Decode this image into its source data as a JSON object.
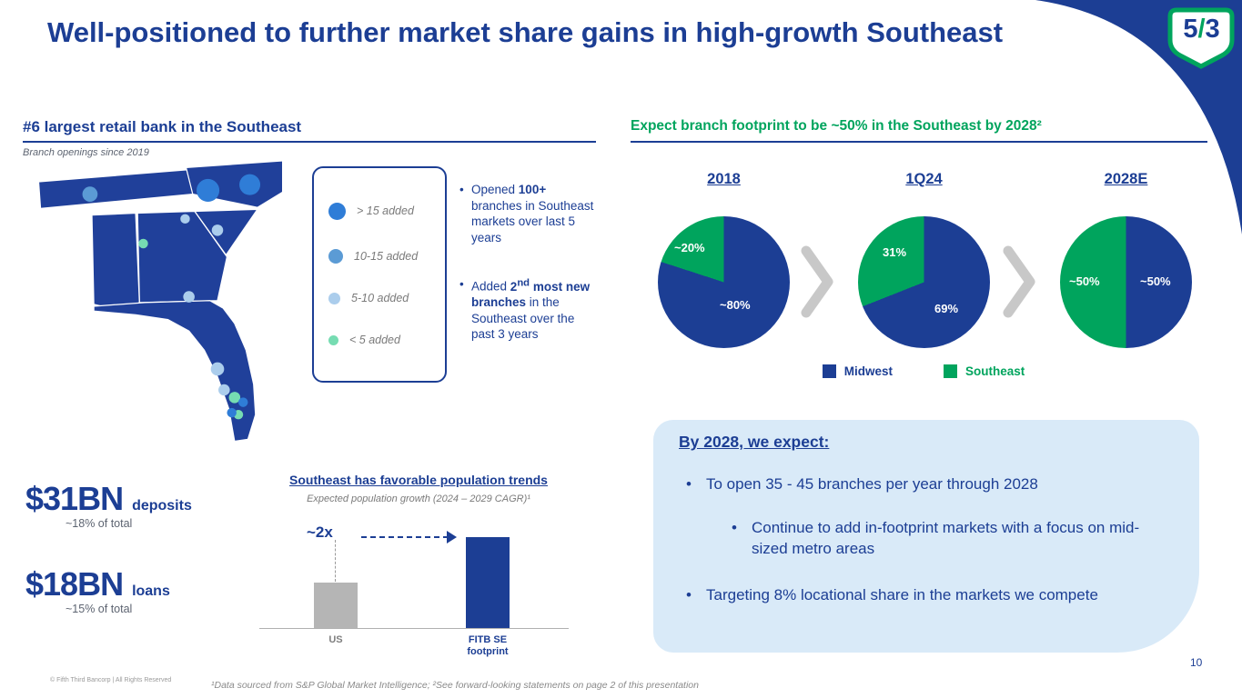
{
  "slide": {
    "title": "Well-positioned to further market share gains in high-growth Southeast",
    "page_number": "10",
    "logo": {
      "five": "5",
      "slash": "/",
      "three": "3"
    }
  },
  "colors": {
    "navy": "#1c3e94",
    "green": "#00a45d",
    "map": "#20409a",
    "dotLarge": "#2f7dd7",
    "dotMedium": "#5b9bd5",
    "dotLight": "#abcdec",
    "dotGreen": "#76dcb2",
    "panel": "#d9eaf8",
    "chevron": "#c8c8c8",
    "barGray": "#b5b5b5",
    "grayText": "#7a7a7a"
  },
  "left_section": {
    "header": "#6 largest retail bank in the Southeast",
    "subheader": "Branch openings since 2019",
    "map_legend": [
      {
        "label": "> 15 added"
      },
      {
        "label": "10-15 added"
      },
      {
        "label": "5-10 added"
      },
      {
        "label": "< 5 added"
      }
    ],
    "bullets": [
      {
        "pre": "Opened ",
        "bold": "100+",
        "post": " branches in Southeast markets over last 5 years"
      },
      {
        "pre": "Added ",
        "bold_num": "2",
        "sup": "nd",
        "bold_rest": " most new branches",
        "post": " in the Southeast over the past 3 years"
      }
    ]
  },
  "stats": [
    {
      "value": "$31BN",
      "label": "deposits",
      "note": "~18% of total"
    },
    {
      "value": "$18BN",
      "label": "loans",
      "note": "~15% of total"
    }
  ],
  "right_section": {
    "expect_box": {
      "title": "By 2028, we expect:",
      "bullets": [
        "To open 35 - 45 branches per year through 2028",
        "Continue to add in-footprint markets with a focus on mid-sized metro areas",
        "Targeting 8% locational share in the markets we compete"
      ]
    }
  },
  "footer": {
    "copyright": "© Fifth Third Bancorp | All Rights Reserved",
    "footnote": "¹Data sourced from S&P Global Market Intelligence; ²See forward-looking statements on page 2 of this presentation"
  },
  "chart_data": [
    {
      "type": "pie",
      "title": "Expect branch footprint to be ~50% in the Southeast by 2028²",
      "legend": [
        "Midwest",
        "Southeast"
      ],
      "legend_position": "bottom",
      "pies": [
        {
          "label": "2018",
          "values": {
            "Midwest": 80,
            "Southeast": 20
          },
          "display": {
            "Midwest": "~80%",
            "Southeast": "~20%"
          }
        },
        {
          "label": "1Q24",
          "values": {
            "Midwest": 69,
            "Southeast": 31
          },
          "display": {
            "Midwest": "69%",
            "Southeast": "31%"
          }
        },
        {
          "label": "2028E",
          "values": {
            "Midwest": 50,
            "Southeast": 50
          },
          "display": {
            "Midwest": "~50%",
            "Southeast": "~50%"
          }
        }
      ]
    },
    {
      "type": "bar",
      "title": "Southeast has favorable population trends",
      "subtitle": "Expected population growth (2024 – 2029 CAGR)¹",
      "categories": [
        "US",
        "FITB SE footprint"
      ],
      "values": [
        1,
        2
      ],
      "annotation": "~2x",
      "grid": false
    }
  ]
}
